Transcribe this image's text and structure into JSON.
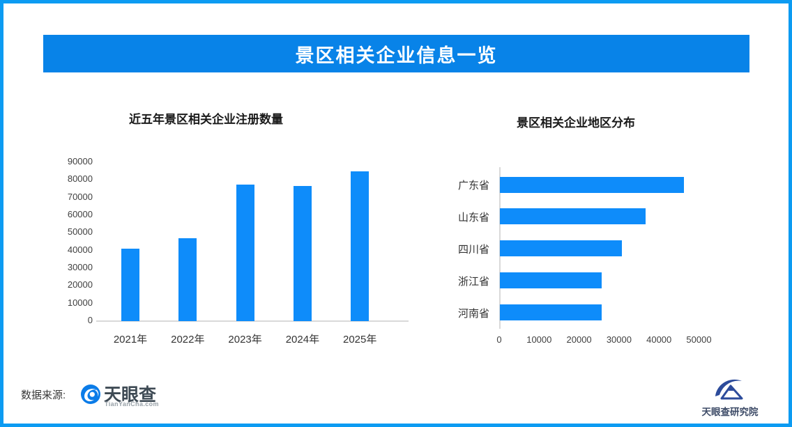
{
  "page": {
    "border_color": "#0C9BF2",
    "background_color": "#FFFFFF"
  },
  "banner": {
    "title": "景区相关企业信息一览",
    "bg_color": "#0883E8",
    "text_color": "#FFFFFF"
  },
  "chart_data": [
    {
      "type": "bar",
      "title": "近五年景区相关企业注册数量",
      "categories": [
        "2021年",
        "2022年",
        "2023年",
        "2024年",
        "2025年"
      ],
      "values": [
        41000,
        47000,
        77500,
        76500,
        85000
      ],
      "ylim": [
        0,
        90000
      ],
      "ytick_step": 10000,
      "ytick_labels": [
        "0",
        "10000",
        "20000",
        "30000",
        "40000",
        "50000",
        "60000",
        "70000",
        "80000",
        "90000"
      ],
      "bar_color": "#0E8CFA",
      "axis_color": "#D9D9D9",
      "grid": false,
      "legend": "none"
    },
    {
      "type": "bar-horizontal",
      "title": "景区相关企业地区分布",
      "categories": [
        "广东省",
        "山东省",
        "四川省",
        "浙江省",
        "河南省"
      ],
      "values": [
        46000,
        36500,
        30500,
        25500,
        25400
      ],
      "xlim": [
        0,
        50000
      ],
      "xtick_step": 10000,
      "xtick_labels": [
        "0",
        "10000",
        "20000",
        "30000",
        "40000",
        "50000"
      ],
      "bar_color": "#0E8CFA",
      "axis_color": "#D9D9D9",
      "grid": false,
      "legend": "none"
    }
  ],
  "footer": {
    "source_label": "数据来源:",
    "tianyancha": {
      "name": "天眼查",
      "subtext": "TianYanCha.com",
      "icon_color": "#0B7CE8"
    },
    "institute": {
      "name": "天眼查研究院",
      "icon_color": "#2C4B9B"
    }
  }
}
